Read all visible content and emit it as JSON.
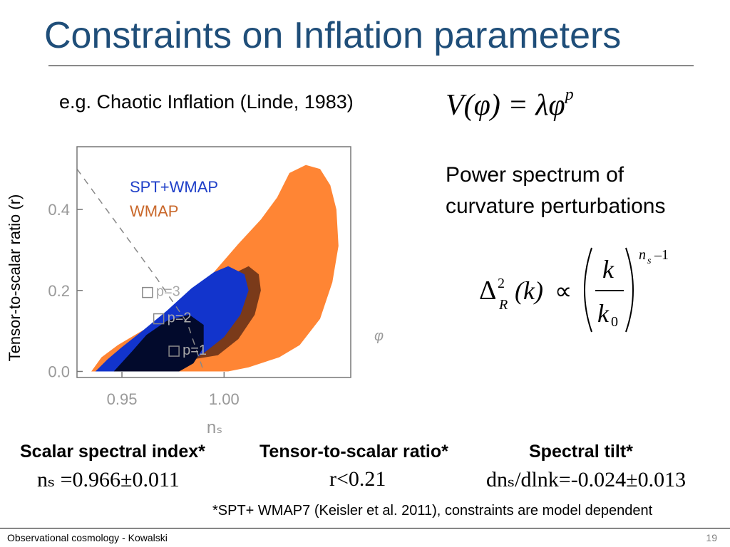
{
  "slide": {
    "title": "Constraints on Inflation parameters",
    "subtitle": "e.g. Chaotic Inflation (Linde, 1983)",
    "potential_formula": {
      "lhs": "V(φ) = λφ",
      "exponent": "p"
    },
    "power_spectrum_title": "Power spectrum of curvature perturbations",
    "power_spectrum_formula": {
      "delta": "Δ",
      "sup": "2",
      "sub": "R",
      "arg": "(k)",
      "prop": "∝",
      "num": "k",
      "den_main": "k",
      "den_sub": "0",
      "exp_main": "n",
      "exp_sub": "s",
      "exp_tail": " –1"
    },
    "stats": [
      {
        "label": "Scalar spectral index*",
        "value": "nₛ =0.966±0.011"
      },
      {
        "label": "Tensor-to-scalar ratio*",
        "value": "r<0.21"
      },
      {
        "label": "Spectral tilt*",
        "value": "dnₛ/dlnk=-0.024±0.013"
      }
    ],
    "footnote": "*SPT+ WMAP7 (Keisler et al. 2011), constraints are model dependent",
    "footer": {
      "left": "Observational cosmology - Kowalski",
      "page": "19"
    }
  },
  "chart_data": {
    "type": "contour",
    "ylabel": "Tensor-to-scalar ratio (r)",
    "xlabel": "nₛ",
    "x_ticks": [
      "0.95",
      "1.00"
    ],
    "x_tick_values": [
      0.95,
      1.0
    ],
    "y_ticks": [
      "0.0",
      "0.2",
      "0.4"
    ],
    "y_tick_values": [
      0.0,
      0.2,
      0.4
    ],
    "xlim": [
      0.928,
      1.062
    ],
    "ylim": [
      -0.015,
      0.555
    ],
    "legend": [
      {
        "name": "SPT+WMAP",
        "color": "#1f3fc8"
      },
      {
        "name": "WMAP",
        "color": "#c9682b"
      }
    ],
    "phi_label": "φ",
    "regions": [
      {
        "name": "WMAP 95%",
        "color": "#ff8534",
        "points": [
          [
            0.935,
            0.0
          ],
          [
            0.94,
            0.035
          ],
          [
            0.948,
            0.065
          ],
          [
            0.958,
            0.095
          ],
          [
            0.97,
            0.13
          ],
          [
            0.982,
            0.175
          ],
          [
            0.995,
            0.245
          ],
          [
            1.007,
            0.315
          ],
          [
            1.018,
            0.375
          ],
          [
            1.026,
            0.43
          ],
          [
            1.032,
            0.49
          ],
          [
            1.04,
            0.51
          ],
          [
            1.047,
            0.5
          ],
          [
            1.052,
            0.46
          ],
          [
            1.055,
            0.4
          ],
          [
            1.056,
            0.31
          ],
          [
            1.053,
            0.22
          ],
          [
            1.047,
            0.13
          ],
          [
            1.037,
            0.065
          ],
          [
            1.027,
            0.035
          ],
          [
            1.012,
            0.01
          ],
          [
            1.002,
            0.0
          ]
        ]
      },
      {
        "name": "WMAP 68%",
        "color": "#7a3a1a",
        "points": [
          [
            0.985,
            0.12
          ],
          [
            0.997,
            0.19
          ],
          [
            1.006,
            0.245
          ],
          [
            1.012,
            0.26
          ],
          [
            1.017,
            0.24
          ],
          [
            1.018,
            0.2
          ],
          [
            1.015,
            0.14
          ],
          [
            1.007,
            0.08
          ],
          [
            0.997,
            0.04
          ],
          [
            0.985,
            0.03
          ]
        ]
      },
      {
        "name": "SPT+WMAP 95%",
        "color": "#1234cc",
        "points": [
          [
            0.937,
            0.0
          ],
          [
            0.943,
            0.03
          ],
          [
            0.95,
            0.06
          ],
          [
            0.96,
            0.1
          ],
          [
            0.972,
            0.15
          ],
          [
            0.984,
            0.205
          ],
          [
            0.995,
            0.245
          ],
          [
            1.002,
            0.26
          ],
          [
            1.01,
            0.24
          ],
          [
            1.012,
            0.2
          ],
          [
            1.008,
            0.14
          ],
          [
            1.0,
            0.085
          ],
          [
            0.99,
            0.045
          ],
          [
            0.98,
            0.015
          ],
          [
            0.972,
            0.0
          ]
        ]
      },
      {
        "name": "SPT+WMAP 68%",
        "color": "#020a2c",
        "points": [
          [
            0.946,
            0.0
          ],
          [
            0.955,
            0.05
          ],
          [
            0.962,
            0.09
          ],
          [
            0.972,
            0.125
          ],
          [
            0.983,
            0.14
          ],
          [
            0.99,
            0.115
          ],
          [
            0.99,
            0.06
          ],
          [
            0.985,
            0.02
          ],
          [
            0.978,
            0.0
          ]
        ]
      }
    ],
    "dashed_line": [
      [
        0.928,
        0.5
      ],
      [
        0.967,
        0.23
      ],
      [
        0.982,
        0.12
      ],
      [
        0.99,
        0.0
      ]
    ],
    "markers": [
      {
        "label": "p=3",
        "x": 0.9625,
        "y": 0.195
      },
      {
        "label": "p=2",
        "x": 0.968,
        "y": 0.13
      },
      {
        "label": "p=1",
        "x": 0.9755,
        "y": 0.05
      }
    ]
  }
}
